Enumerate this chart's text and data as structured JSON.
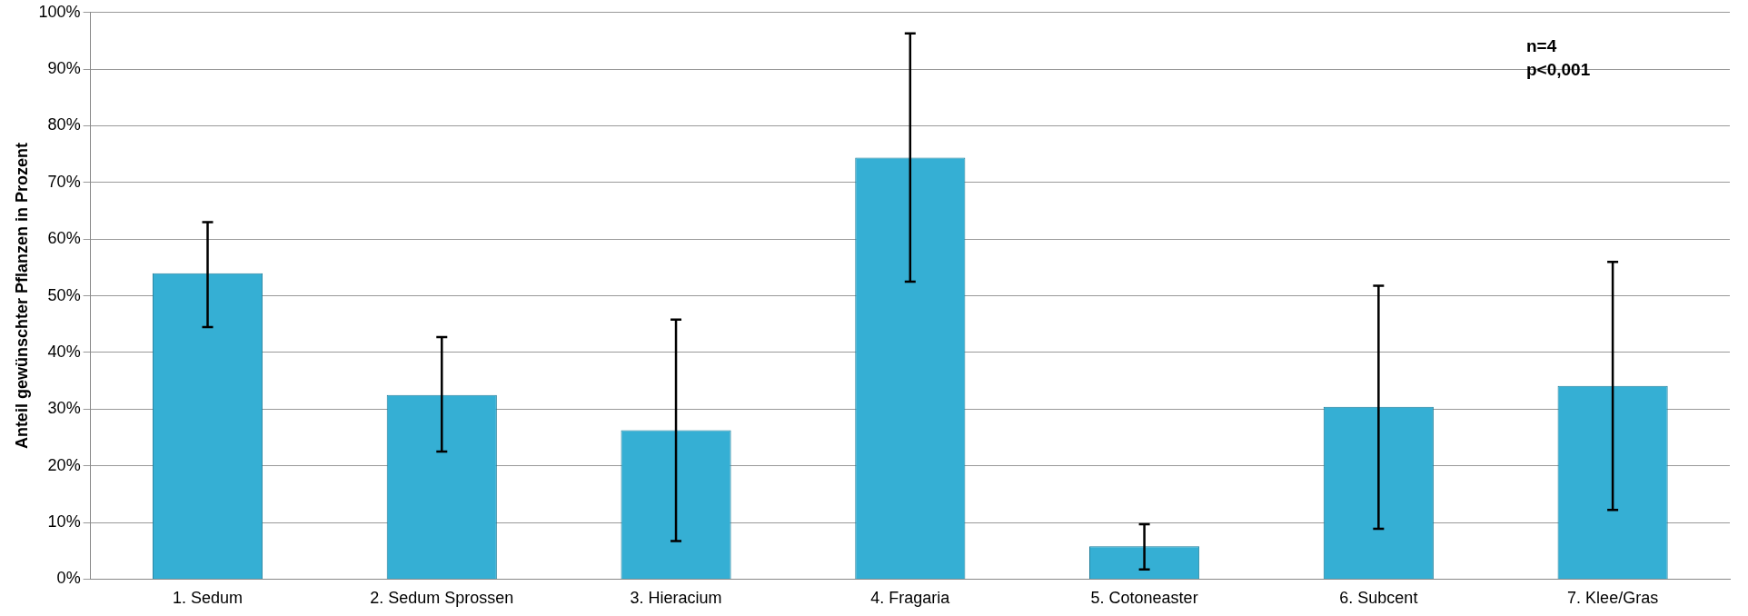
{
  "chart_data": {
    "type": "bar",
    "ylabel": "Anteil gewünschter Pflanzen in Prozent",
    "categories": [
      "1. Sedum",
      "2. Sedum Sprossen",
      "3. Hieracium",
      "4. Fragaria",
      "5. Cotoneaster",
      "6. Subcent",
      "7. Klee/Gras"
    ],
    "values": [
      54,
      32.5,
      26.3,
      74.4,
      5.8,
      30.4,
      34.1
    ],
    "errors": [
      [
        44.5,
        63
      ],
      [
        22.5,
        42.7
      ],
      [
        6.7,
        45.8
      ],
      [
        52.5,
        96.3
      ],
      [
        1.7,
        9.7
      ],
      [
        8.9,
        51.8
      ],
      [
        12.2,
        56
      ]
    ],
    "color": "#35afd4",
    "ylim": [
      0,
      100
    ],
    "yticks": [
      {
        "value": 0,
        "label": "0%"
      },
      {
        "value": 10,
        "label": "10%"
      },
      {
        "value": 20,
        "label": "20%"
      },
      {
        "value": 30,
        "label": "30%"
      },
      {
        "value": 40,
        "label": "40%"
      },
      {
        "value": 50,
        "label": "50%"
      },
      {
        "value": 60,
        "label": "60%"
      },
      {
        "value": 70,
        "label": "70%"
      },
      {
        "value": 80,
        "label": "80%"
      },
      {
        "value": 90,
        "label": "90%"
      },
      {
        "value": 100,
        "label": "100%"
      }
    ],
    "grid": "y",
    "annotations": [
      "n=4",
      "p<0,001"
    ]
  }
}
